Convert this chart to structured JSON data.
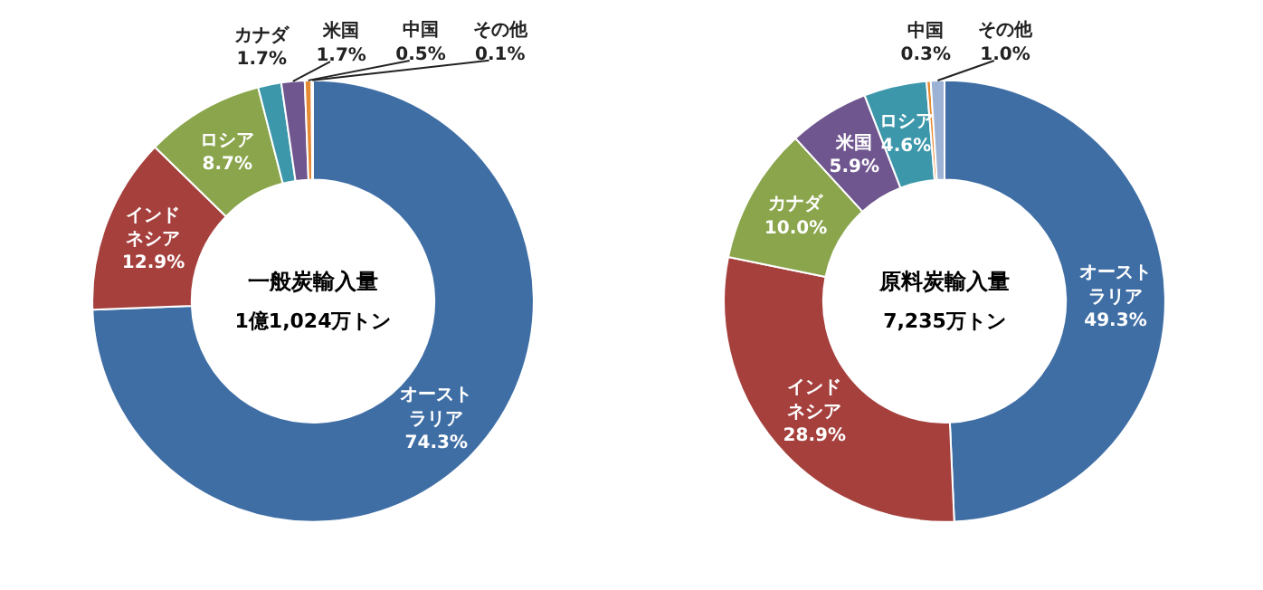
{
  "chart_data": [
    {
      "type": "donut",
      "title": "一般炭輸入量",
      "subtitle": "1億1,024万トン",
      "categories": [
        "オーストラリア",
        "インドネシア",
        "ロシア",
        "カナダ",
        "米国",
        "中国",
        "その他"
      ],
      "values": [
        74.3,
        12.9,
        8.7,
        1.7,
        1.7,
        0.5,
        0.1
      ],
      "value_labels": [
        "74.3%",
        "12.9%",
        "8.7%",
        "1.7%",
        "1.7%",
        "0.5%",
        "0.1%"
      ],
      "colors": [
        "#3f6ea5",
        "#a5403d",
        "#8aa54b",
        "#3d97ab",
        "#6f568f",
        "#e58a34",
        "#9db3d6"
      ]
    },
    {
      "type": "donut",
      "title": "原料炭輸入量",
      "subtitle": "7,235万トン",
      "categories": [
        "オーストラリア",
        "インドネシア",
        "カナダ",
        "米国",
        "ロシア",
        "中国",
        "その他"
      ],
      "values": [
        49.3,
        28.9,
        10.0,
        5.9,
        4.6,
        0.3,
        1.0
      ],
      "value_labels": [
        "49.3%",
        "28.9%",
        "10.0%",
        "5.9%",
        "4.6%",
        "0.3%",
        "1.0%"
      ],
      "colors": [
        "#3f6ea5",
        "#a5403d",
        "#8aa54b",
        "#6f568f",
        "#3d97ab",
        "#e58a34",
        "#9db3d6"
      ]
    }
  ]
}
